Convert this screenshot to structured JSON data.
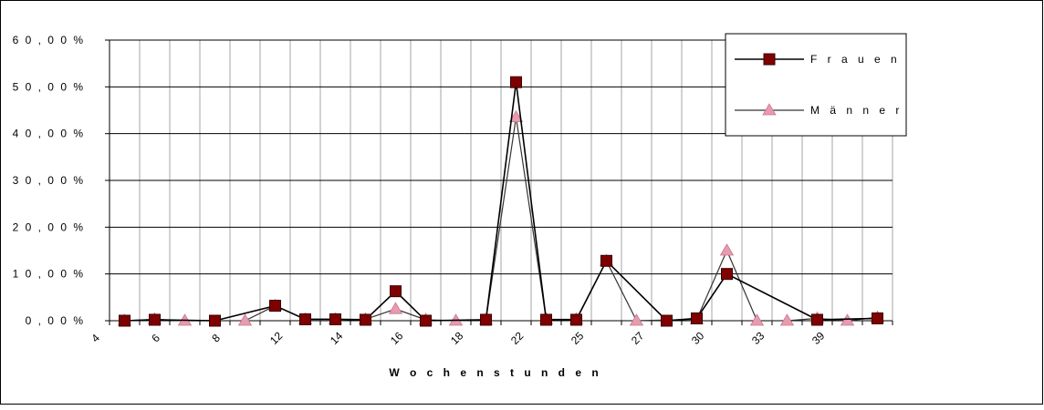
{
  "chart_data": {
    "type": "line",
    "xlabel": "W o c h e n s t u n d e n",
    "ylabel": "",
    "ylim": [
      0,
      60
    ],
    "grid": true,
    "legend_placement": "top-right",
    "y_ticks": [
      {
        "value": 0,
        "label": "0 , 0 0 %"
      },
      {
        "value": 10,
        "label": "1 0 , 0 0 %"
      },
      {
        "value": 20,
        "label": "2 0 , 0 0 %"
      },
      {
        "value": 30,
        "label": "3 0 , 0 0 %"
      },
      {
        "value": 40,
        "label": "4 0 , 0 0 %"
      },
      {
        "value": 50,
        "label": "5 0 , 0 0 %"
      },
      {
        "value": 60,
        "label": "6 0 , 0 0 %"
      }
    ],
    "x_tick_labels": [
      "4",
      "6",
      "8",
      "12",
      "14",
      "16",
      "18",
      "22",
      "25",
      "27",
      "30",
      "33",
      "39"
    ],
    "series": [
      {
        "name": "F r a u e n",
        "color": "#7f0000",
        "marker": "square",
        "values": [
          0,
          0.2,
          null,
          0,
          null,
          3.2,
          0.3,
          0.3,
          0.2,
          6.3,
          0,
          null,
          0.2,
          51,
          0.2,
          0.2,
          12.8,
          null,
          0,
          0.5,
          10,
          null,
          null,
          0.2,
          null,
          0.5
        ]
      },
      {
        "name": "M ä n n e r",
        "color": "#e89aae",
        "marker": "triangle",
        "values": [
          0,
          0.3,
          0,
          null,
          0,
          3.2,
          0.3,
          0.3,
          0.3,
          2.5,
          0.2,
          0,
          0.2,
          43.5,
          0.3,
          0.3,
          12.8,
          0,
          null,
          0.3,
          15,
          0,
          0,
          0.5,
          0,
          0.7
        ]
      }
    ]
  }
}
